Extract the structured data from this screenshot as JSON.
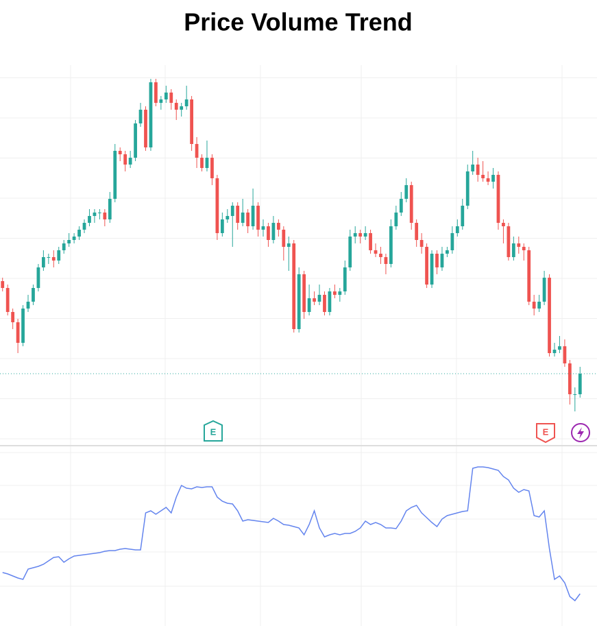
{
  "chart_data": [
    {
      "type": "candlestick",
      "title": "Price Volume Trend",
      "up_color": "#26a69a",
      "down_color": "#ef5350",
      "open": [
        47,
        45,
        38,
        35,
        29,
        39,
        41,
        45,
        51,
        54,
        54,
        53,
        56,
        58,
        59,
        60,
        62,
        64,
        66,
        67,
        67,
        65,
        71,
        85,
        84,
        81,
        83,
        93,
        97,
        86,
        105,
        99,
        100,
        102,
        99,
        97,
        98,
        100,
        87,
        83,
        80,
        83,
        77,
        61,
        65,
        66,
        69,
        64,
        67,
        63,
        69,
        62,
        63,
        59,
        64,
        62,
        57,
        58,
        33,
        49,
        38,
        42,
        41,
        43,
        38,
        44,
        43,
        44,
        51,
        60,
        61,
        60,
        61,
        56,
        55,
        54,
        52,
        63,
        67,
        71,
        75,
        64,
        59,
        57,
        46,
        55,
        51,
        55,
        56,
        61,
        63,
        69,
        79,
        81,
        78,
        77,
        76,
        78,
        64,
        63,
        54,
        58,
        57,
        56,
        41,
        39,
        41,
        48,
        26,
        27,
        28,
        23,
        14,
        14
      ],
      "high": [
        48,
        46,
        39,
        36,
        40,
        43,
        46,
        52,
        56,
        55,
        56,
        57,
        59,
        61,
        61,
        63,
        65,
        68,
        68,
        68,
        68,
        73,
        87,
        86,
        85,
        85,
        94,
        99,
        98,
        106,
        106,
        101,
        104,
        103,
        100,
        99,
        104,
        101,
        89,
        84,
        88,
        84,
        78,
        67,
        68,
        70,
        70,
        71,
        68,
        74,
        70,
        65,
        64,
        66,
        65,
        63,
        60,
        59,
        51,
        50,
        46,
        44,
        46,
        44,
        45,
        46,
        45,
        53,
        62,
        63,
        62,
        63,
        62,
        58,
        57,
        55,
        65,
        69,
        73,
        77,
        76,
        65,
        61,
        58,
        56,
        56,
        57,
        57,
        63,
        65,
        71,
        81,
        85,
        83,
        82,
        79,
        80,
        79,
        65,
        64,
        60,
        60,
        58,
        57,
        43,
        43,
        50,
        49,
        29,
        31,
        30,
        24,
        16,
        22
      ],
      "low": [
        44,
        37,
        33,
        26,
        28,
        38,
        40,
        44,
        50,
        52,
        51,
        52,
        55,
        57,
        58,
        59,
        61,
        63,
        64,
        65,
        63,
        64,
        70,
        82,
        79,
        80,
        82,
        92,
        85,
        85,
        98,
        97,
        99,
        97,
        94,
        95,
        97,
        85,
        80,
        79,
        79,
        75,
        59,
        60,
        64,
        57,
        62,
        63,
        61,
        62,
        60,
        60,
        57,
        58,
        60,
        53,
        50,
        32,
        32,
        36,
        37,
        40,
        40,
        37,
        37,
        42,
        41,
        43,
        50,
        58,
        58,
        59,
        55,
        54,
        52,
        49,
        51,
        62,
        66,
        70,
        62,
        57,
        55,
        45,
        45,
        49,
        50,
        54,
        55,
        60,
        62,
        68,
        78,
        76,
        76,
        75,
        74,
        62,
        58,
        53,
        53,
        55,
        53,
        40,
        37,
        38,
        40,
        25,
        25,
        26,
        22,
        11,
        9,
        13
      ],
      "close": [
        45,
        38,
        35,
        29,
        39,
        41,
        45,
        51,
        54,
        54,
        53,
        56,
        58,
        59,
        60,
        62,
        64,
        66,
        67,
        67,
        65,
        71,
        85,
        84,
        81,
        83,
        93,
        97,
        86,
        105,
        99,
        100,
        102,
        99,
        97,
        98,
        100,
        87,
        83,
        80,
        83,
        77,
        61,
        65,
        66,
        69,
        64,
        67,
        63,
        69,
        62,
        63,
        59,
        64,
        62,
        57,
        58,
        33,
        49,
        38,
        42,
        41,
        43,
        38,
        44,
        43,
        44,
        51,
        60,
        61,
        60,
        61,
        56,
        55,
        54,
        52,
        63,
        67,
        71,
        75,
        64,
        59,
        57,
        46,
        55,
        51,
        55,
        56,
        61,
        63,
        69,
        79,
        81,
        78,
        77,
        76,
        78,
        64,
        63,
        54,
        58,
        57,
        56,
        41,
        39,
        41,
        48,
        26,
        27,
        28,
        23,
        14,
        14,
        20
      ],
      "ylim": [
        0,
        110
      ],
      "yticks": [
        1,
        12.7,
        24.4,
        36.1,
        47.8,
        59.5,
        71.2,
        82.9,
        94.6,
        106.3
      ],
      "grid": true,
      "annotations": [
        {
          "label": "E",
          "color": "#26a69a"
        },
        {
          "label": "E",
          "color": "#ef5350"
        }
      ]
    },
    {
      "type": "line",
      "color": "#6384ee",
      "values": [
        37.5,
        36.5,
        35,
        33.5,
        32.5,
        40,
        41,
        42,
        43.5,
        46,
        48.5,
        49,
        45,
        47.5,
        49.5,
        50,
        50.5,
        51,
        51.5,
        52,
        53,
        53.5,
        53.5,
        54.5,
        55,
        54.5,
        54,
        54,
        81,
        82.5,
        80,
        82.5,
        85,
        81,
        92.5,
        101,
        99,
        98.5,
        100,
        99.5,
        100,
        100,
        92.5,
        89.5,
        88,
        87.5,
        82.5,
        75,
        76,
        75.5,
        75,
        74.5,
        74,
        77,
        75,
        72.5,
        72,
        71,
        70,
        65,
        72.5,
        82.5,
        70,
        63.5,
        65,
        66,
        65,
        66,
        66,
        67.5,
        70,
        75,
        72.5,
        74,
        72.5,
        70,
        70,
        69.5,
        75,
        82.5,
        85,
        86.5,
        81,
        77.5,
        74,
        71,
        76.5,
        79,
        80,
        81,
        82,
        82.5,
        113.5,
        114.5,
        114.5,
        114,
        113,
        112,
        107.5,
        105,
        99,
        96,
        98,
        97,
        79,
        78,
        82.5,
        55,
        32.5,
        35,
        30,
        20,
        17,
        22
      ],
      "ylim": [
        0,
        127.5
      ],
      "yticks": [
        27.5,
        52.5,
        76.5,
        101,
        125
      ],
      "grid": true
    }
  ]
}
